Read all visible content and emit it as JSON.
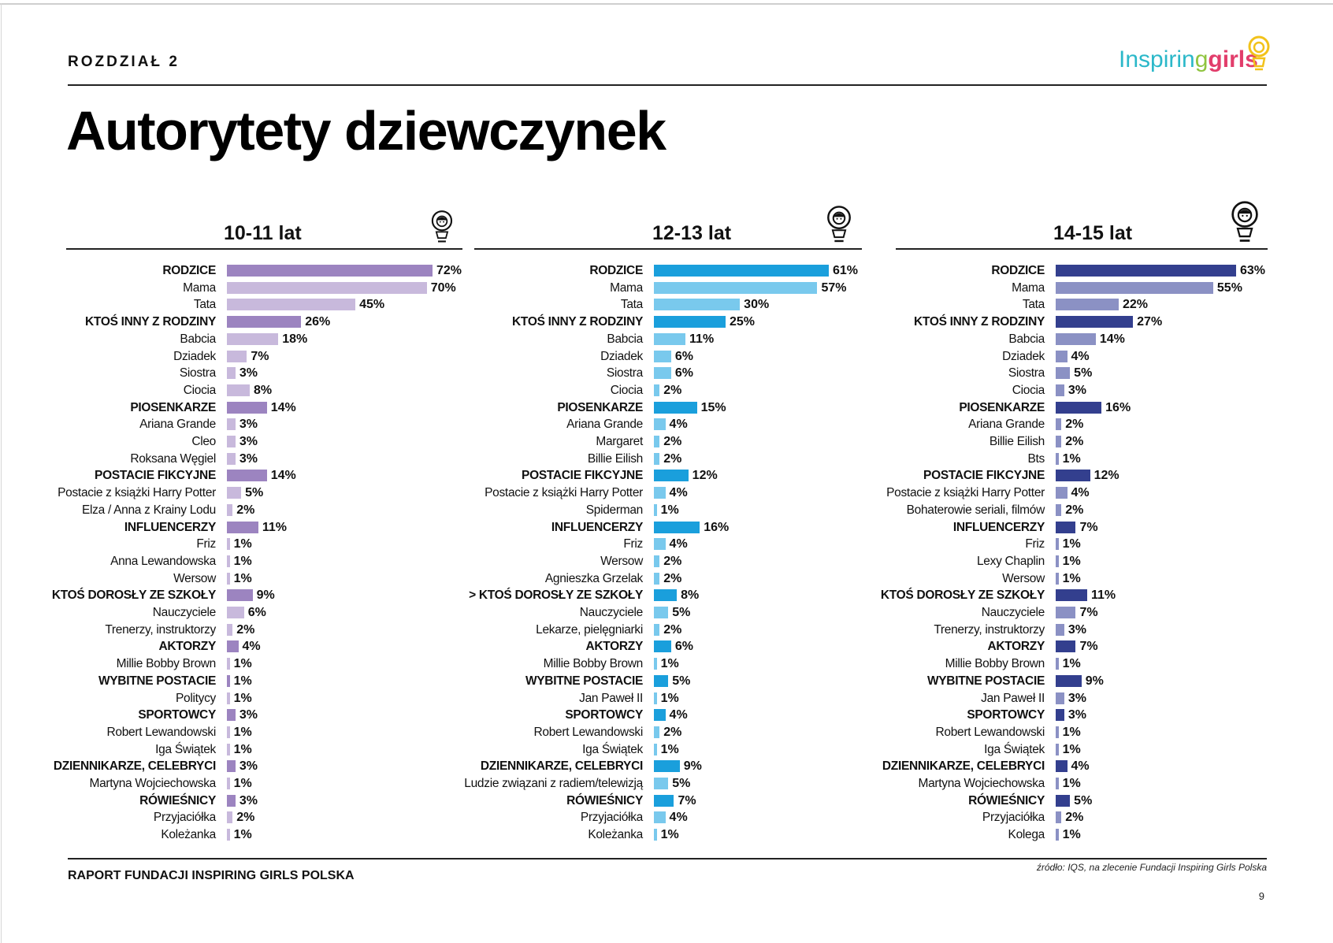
{
  "header": {
    "chapter": "ROZDZIAŁ 2",
    "title": "Autorytety dziewczynek",
    "logo": {
      "part1": "Inspirin",
      "part2": "g",
      "part3": "girls"
    }
  },
  "footer": {
    "report": "RAPORT FUNDACJI INSPIRING GIRLS POLSKA",
    "source": "źródło: IQS, na zlecenie Fundacji Inspiring Girls Polska",
    "page": "9"
  },
  "colors": {
    "panel1": {
      "cat": "#9c84c0",
      "sub": "#c8b9dc"
    },
    "panel2": {
      "cat": "#1a9fdc",
      "sub": "#79c9ed"
    },
    "panel3": {
      "cat": "#333f8e",
      "sub": "#8b91c4"
    }
  },
  "chart_data": [
    {
      "type": "bar",
      "title": "10-11 lat",
      "unit": "%",
      "xlim": [
        0,
        72
      ],
      "categories": [
        "RODZICE",
        "Mama",
        "Tata",
        "KTOŚ INNY Z  RODZINY",
        "Babcia",
        "Dziadek",
        "Siostra",
        "Ciocia",
        "PIOSENKARZE",
        "Ariana Grande",
        "Cleo",
        "Roksana Węgiel",
        "POSTACIE FIKCYJNE",
        "Postacie z książki Harry Potter",
        "Elza / Anna z Krainy Lodu",
        "INFLUENCERZY",
        "Friz",
        "Anna Lewandowska",
        "Wersow",
        "KTOŚ DOROSŁY ZE SZKOŁY",
        "Nauczyciele",
        "Trenerzy, instruktorzy",
        "AKTORZY",
        "Millie Bobby Brown",
        "WYBITNE POSTACIE",
        "Politycy",
        "SPORTOWCY",
        "Robert Lewandowski",
        "Iga Świątek",
        "DZIENNIKARZE, CELEBRYCI",
        "Martyna Wojciechowska",
        "RÓWIEŚNICY",
        "Przyjaciółka",
        "Koleżanka"
      ],
      "values": [
        72,
        70,
        45,
        26,
        18,
        7,
        3,
        8,
        14,
        3,
        3,
        3,
        14,
        5,
        2,
        11,
        1,
        1,
        1,
        9,
        6,
        2,
        4,
        1,
        1,
        1,
        3,
        1,
        1,
        3,
        1,
        3,
        2,
        1
      ],
      "labels": [
        "72%",
        "70%",
        "45%",
        "26%",
        "18%",
        "7%",
        "3%",
        "8%",
        "14%",
        "3%",
        "3%",
        "3%",
        "14%",
        "5%",
        "2%",
        "11%",
        "1%",
        "1%",
        "1%",
        "9%",
        "6%",
        "2%",
        "4%",
        "1%",
        "1%",
        "1%",
        "3%",
        "1%",
        "1%",
        "3%",
        "1%",
        "3%",
        "2%",
        "1%"
      ],
      "is_category": [
        1,
        0,
        0,
        1,
        0,
        0,
        0,
        0,
        1,
        0,
        0,
        0,
        1,
        0,
        0,
        1,
        0,
        0,
        0,
        1,
        0,
        0,
        1,
        0,
        1,
        0,
        1,
        0,
        0,
        1,
        0,
        1,
        0,
        0
      ]
    },
    {
      "type": "bar",
      "title": "12-13 lat",
      "unit": "%",
      "xlim": [
        0,
        61
      ],
      "categories": [
        "RODZICE",
        "Mama",
        "Tata",
        "KTOŚ INNY Z  RODZINY",
        "Babcia",
        "Dziadek",
        "Siostra",
        "Ciocia",
        "PIOSENKARZE",
        "Ariana Grande",
        "Margaret",
        "Billie Eilish",
        "POSTACIE FIKCYJNE",
        "Postacie z książki Harry Potter",
        "Spiderman",
        "INFLUENCERZY",
        "Friz",
        "Wersow",
        "Agnieszka Grzelak",
        "> KTOŚ DOROSŁY ZE SZKOŁY",
        "Nauczyciele",
        "Lekarze, pielęgniarki",
        "AKTORZY",
        "Millie Bobby Brown",
        "WYBITNE POSTACIE",
        "Jan Paweł II",
        "SPORTOWCY",
        "Robert Lewandowski",
        "Iga Świątek",
        "DZIENNIKARZE, CELEBRYCI",
        "Ludzie związani z radiem/telewizją",
        "RÓWIEŚNICY",
        "Przyjaciółka",
        "Koleżanka"
      ],
      "values": [
        61,
        57,
        30,
        25,
        11,
        6,
        6,
        2,
        15,
        4,
        2,
        2,
        12,
        4,
        1,
        16,
        4,
        2,
        2,
        8,
        5,
        2,
        6,
        1,
        5,
        1,
        4,
        2,
        1,
        9,
        5,
        7,
        4,
        1
      ],
      "labels": [
        "61%",
        "57%",
        "30%",
        "25%",
        "11%",
        "6%",
        "6%",
        "2%",
        "15%",
        "4%",
        "2%",
        "2%",
        "12%",
        "4%",
        "1%",
        "16%",
        "4%",
        "2%",
        "2%",
        "8%",
        "5%",
        "2%",
        "6%",
        "1%",
        "5%",
        "1%",
        "4%",
        "2%",
        "1%",
        "9%",
        "5%",
        "7%",
        "4%",
        "1%"
      ],
      "is_category": [
        1,
        0,
        0,
        1,
        0,
        0,
        0,
        0,
        1,
        0,
        0,
        0,
        1,
        0,
        0,
        1,
        0,
        0,
        0,
        1,
        0,
        0,
        1,
        0,
        1,
        0,
        1,
        0,
        0,
        1,
        0,
        1,
        0,
        0
      ]
    },
    {
      "type": "bar",
      "title": "14-15 lat",
      "unit": "%",
      "xlim": [
        0,
        63
      ],
      "categories": [
        "RODZICE",
        "Mama",
        "Tata",
        "KTOŚ INNY Z  RODZINY",
        "Babcia",
        "Dziadek",
        "Siostra",
        "Ciocia",
        "PIOSENKARZE",
        "Ariana Grande",
        "Billie Eilish",
        "Bts",
        "POSTACIE FIKCYJNE",
        "Postacie z książki Harry Potter",
        "Bohaterowie seriali, filmów",
        "INFLUENCERZY",
        "Friz",
        "Lexy Chaplin",
        "Wersow",
        "KTOŚ DOROSŁY ZE SZKOŁY",
        "Nauczyciele",
        "Trenerzy, instruktorzy",
        "AKTORZY",
        "Millie Bobby Brown",
        "WYBITNE POSTACIE",
        "Jan Paweł II",
        "SPORTOWCY",
        "Robert Lewandowski",
        "Iga Świątek",
        "DZIENNIKARZE, CELEBRYCI",
        "Martyna Wojciechowska",
        "RÓWIEŚNICY",
        "Przyjaciółka",
        "Kolega"
      ],
      "values": [
        63,
        55,
        22,
        27,
        14,
        4,
        5,
        3,
        16,
        2,
        2,
        1,
        12,
        4,
        2,
        7,
        1,
        1,
        1,
        11,
        7,
        3,
        7,
        1,
        9,
        3,
        3,
        1,
        1,
        4,
        1,
        5,
        2,
        1
      ],
      "labels": [
        "63%",
        "55%",
        "22%",
        "27%",
        "14%",
        "4%",
        "5%",
        "3%",
        "16%",
        "2%",
        "2%",
        "1%",
        "12%",
        "4%",
        "2%",
        "7%",
        "1%",
        "1%",
        "1%",
        "11%",
        "7%",
        "3%",
        "7%",
        "1%",
        "9%",
        "3%",
        "3%",
        "1%",
        "1%",
        "4%",
        "1%",
        "5%",
        "2%",
        "1%"
      ],
      "is_category": [
        1,
        0,
        0,
        1,
        0,
        0,
        0,
        0,
        1,
        0,
        0,
        0,
        1,
        0,
        0,
        1,
        0,
        0,
        0,
        1,
        0,
        0,
        1,
        0,
        1,
        0,
        1,
        0,
        0,
        1,
        0,
        1,
        0,
        0
      ]
    }
  ]
}
